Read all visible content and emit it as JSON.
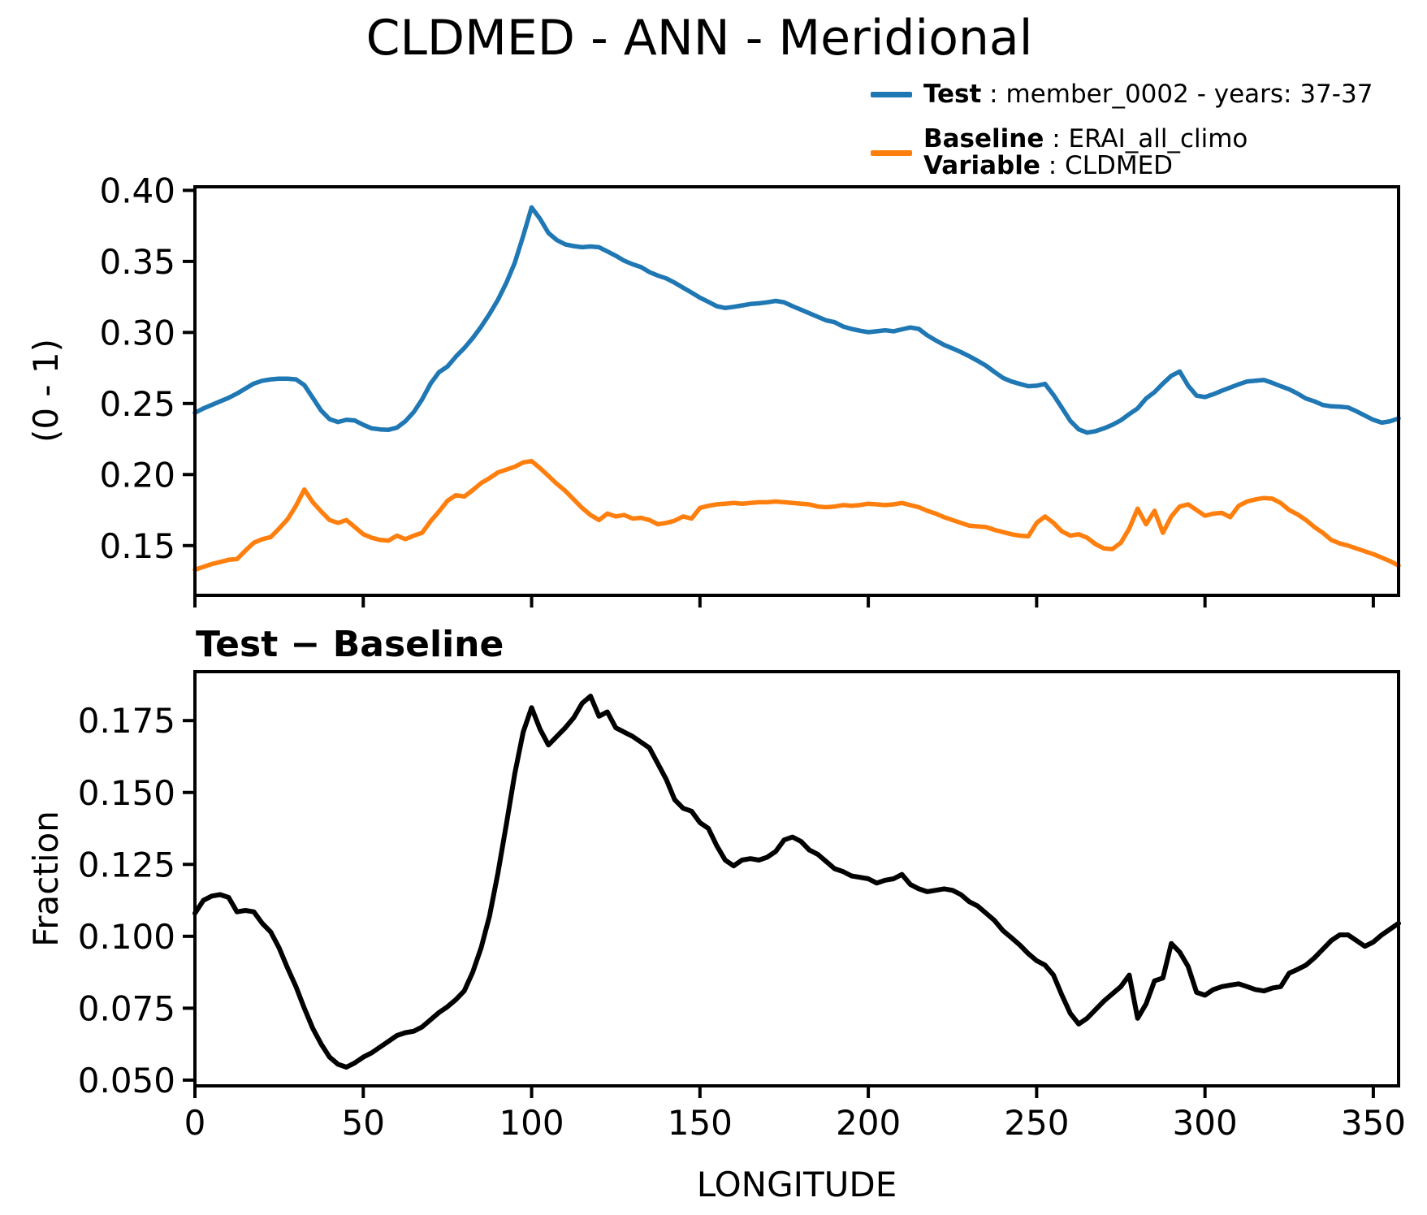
{
  "title": "CLDMED - ANN - Meridional",
  "legend": {
    "test_color": "#1f77b4",
    "test_bold": "Test",
    "test_rest": " : member_0002 - years: 37-37",
    "baseline_color": "#ff7f0e",
    "baseline_bold": "Baseline",
    "baseline_rest": " : ERAI_all_climo",
    "variable_bold": "Variable",
    "variable_rest": " : CLDMED"
  },
  "chart_data": [
    {
      "type": "line",
      "title": "",
      "ylabel": "(0 - 1)",
      "xlabel": "",
      "ylim": [
        0.115,
        0.4025
      ],
      "yticks": [
        0.15,
        0.2,
        0.25,
        0.3,
        0.35,
        0.4
      ],
      "ytick_labels": [
        "0.15",
        "0.20",
        "0.25",
        "0.30",
        "0.35",
        "0.40"
      ],
      "xlim": [
        0,
        357.5
      ],
      "xticks": [
        0,
        50,
        100,
        150,
        200,
        250,
        300,
        350
      ],
      "xtick_labels": null,
      "x_start": 0,
      "x_step": 2.5,
      "grid": false,
      "legend_position": "upper-right-outside",
      "series": [
        {
          "name": "Test : member_0002 - years: 37-37",
          "color": "#1f77b4",
          "values": [
            0.2435,
            0.2465,
            0.249,
            0.2515,
            0.254,
            0.257,
            0.2605,
            0.264,
            0.266,
            0.267,
            0.2675,
            0.2675,
            0.267,
            0.263,
            0.254,
            0.245,
            0.239,
            0.237,
            0.2385,
            0.238,
            0.235,
            0.2325,
            0.2318,
            0.2315,
            0.233,
            0.2375,
            0.244,
            0.253,
            0.264,
            0.272,
            0.276,
            0.283,
            0.289,
            0.296,
            0.304,
            0.313,
            0.323,
            0.335,
            0.349,
            0.368,
            0.388,
            0.38,
            0.37,
            0.365,
            0.362,
            0.3608,
            0.36,
            0.3605,
            0.36,
            0.357,
            0.354,
            0.3505,
            0.348,
            0.346,
            0.3425,
            0.34,
            0.338,
            0.335,
            0.3315,
            0.328,
            0.3245,
            0.3215,
            0.3185,
            0.3172,
            0.318,
            0.319,
            0.32,
            0.3205,
            0.3212,
            0.3222,
            0.3212,
            0.3185,
            0.316,
            0.3135,
            0.311,
            0.3085,
            0.3072,
            0.3042,
            0.3025,
            0.3012,
            0.3002,
            0.3008,
            0.3015,
            0.3008,
            0.3022,
            0.3035,
            0.3025,
            0.298,
            0.2945,
            0.2912,
            0.2888,
            0.2862,
            0.2832,
            0.28,
            0.2765,
            0.2722,
            0.268,
            0.2655,
            0.2638,
            0.2622,
            0.2625,
            0.2638,
            0.256,
            0.247,
            0.2378,
            0.2318,
            0.2295,
            0.2305,
            0.2325,
            0.235,
            0.2382,
            0.2425,
            0.2465,
            0.2535,
            0.258,
            0.264,
            0.2695,
            0.2725,
            0.2625,
            0.2555,
            0.2545,
            0.2565,
            0.259,
            0.2612,
            0.2635,
            0.2655,
            0.266,
            0.2665,
            0.2645,
            0.2622,
            0.26,
            0.257,
            0.2535,
            0.2515,
            0.249,
            0.248,
            0.2478,
            0.2472,
            0.2445,
            0.2415,
            0.2385,
            0.2365,
            0.2375,
            0.2395
          ]
        },
        {
          "name": "Baseline : ERAI_all_climo",
          "color": "#ff7f0e",
          "values": [
            0.133,
            0.135,
            0.137,
            0.1385,
            0.14,
            0.1405,
            0.1465,
            0.152,
            0.1545,
            0.156,
            0.162,
            0.1685,
            0.178,
            0.1895,
            0.1805,
            0.174,
            0.168,
            0.166,
            0.168,
            0.163,
            0.158,
            0.1555,
            0.154,
            0.1535,
            0.157,
            0.1545,
            0.157,
            0.159,
            0.1672,
            0.174,
            0.1815,
            0.1855,
            0.1845,
            0.189,
            0.194,
            0.1975,
            0.2015,
            0.2035,
            0.2055,
            0.2085,
            0.2095,
            0.2045,
            0.199,
            0.1935,
            0.1885,
            0.1825,
            0.1765,
            0.1715,
            0.168,
            0.1725,
            0.1705,
            0.1715,
            0.169,
            0.1695,
            0.168,
            0.165,
            0.166,
            0.1675,
            0.1705,
            0.169,
            0.1765,
            0.178,
            0.179,
            0.1795,
            0.18,
            0.1795,
            0.18,
            0.1805,
            0.1805,
            0.181,
            0.1805,
            0.18,
            0.1795,
            0.179,
            0.1775,
            0.177,
            0.1775,
            0.1785,
            0.178,
            0.1785,
            0.1795,
            0.179,
            0.1785,
            0.179,
            0.18,
            0.1785,
            0.177,
            0.1745,
            0.1725,
            0.17,
            0.168,
            0.166,
            0.164,
            0.1635,
            0.163,
            0.161,
            0.1595,
            0.158,
            0.157,
            0.1565,
            0.166,
            0.1705,
            0.166,
            0.16,
            0.157,
            0.158,
            0.1555,
            0.151,
            0.148,
            0.1475,
            0.152,
            0.162,
            0.176,
            0.165,
            0.1745,
            0.159,
            0.1705,
            0.1775,
            0.179,
            0.175,
            0.171,
            0.1725,
            0.173,
            0.17,
            0.178,
            0.181,
            0.1825,
            0.1835,
            0.183,
            0.18,
            0.175,
            0.172,
            0.168,
            0.163,
            0.159,
            0.154,
            0.1515,
            0.15,
            0.148,
            0.146,
            0.144,
            0.1415,
            0.139,
            0.136
          ]
        }
      ]
    },
    {
      "type": "line",
      "title": "Test − Baseline",
      "ylabel": "Fraction",
      "xlabel": "LONGITUDE",
      "ylim": [
        0.048,
        0.192
      ],
      "yticks": [
        0.05,
        0.075,
        0.1,
        0.125,
        0.15,
        0.175
      ],
      "ytick_labels": [
        "0.050",
        "0.075",
        "0.100",
        "0.125",
        "0.150",
        "0.175"
      ],
      "xlim": [
        0,
        357.5
      ],
      "xticks": [
        0,
        50,
        100,
        150,
        200,
        250,
        300,
        350
      ],
      "xtick_labels": [
        "0",
        "50",
        "100",
        "150",
        "200",
        "250",
        "300",
        "350"
      ],
      "x_start": 0,
      "x_step": 2.5,
      "grid": false,
      "series": [
        {
          "name": "Test minus Baseline",
          "color": "#000000",
          "values": [
            0.108,
            0.1125,
            0.114,
            0.1145,
            0.1135,
            0.1085,
            0.109,
            0.1085,
            0.1045,
            0.1015,
            0.096,
            0.089,
            0.0825,
            0.075,
            0.068,
            0.0625,
            0.058,
            0.0555,
            0.0545,
            0.056,
            0.058,
            0.0595,
            0.0615,
            0.0635,
            0.0655,
            0.0665,
            0.067,
            0.0685,
            0.071,
            0.0735,
            0.0755,
            0.078,
            0.081,
            0.0875,
            0.096,
            0.107,
            0.122,
            0.139,
            0.1565,
            0.171,
            0.1795,
            0.172,
            0.1665,
            0.1695,
            0.1725,
            0.176,
            0.181,
            0.1835,
            0.1765,
            0.178,
            0.1725,
            0.171,
            0.1695,
            0.1675,
            0.1655,
            0.16,
            0.1545,
            0.1475,
            0.1445,
            0.1435,
            0.1395,
            0.1375,
            0.1315,
            0.1265,
            0.1245,
            0.1265,
            0.127,
            0.1265,
            0.1275,
            0.1295,
            0.1335,
            0.1345,
            0.133,
            0.13,
            0.1285,
            0.126,
            0.1235,
            0.1225,
            0.121,
            0.1205,
            0.12,
            0.1185,
            0.1195,
            0.12,
            0.1215,
            0.118,
            0.1165,
            0.1155,
            0.116,
            0.1165,
            0.116,
            0.1145,
            0.112,
            0.1105,
            0.108,
            0.1055,
            0.102,
            0.0995,
            0.097,
            0.094,
            0.0915,
            0.09,
            0.0865,
            0.0795,
            0.0732,
            0.0695,
            0.0715,
            0.0745,
            0.0775,
            0.08,
            0.0825,
            0.0865,
            0.0715,
            0.0765,
            0.0845,
            0.0855,
            0.0975,
            0.0945,
            0.0895,
            0.0805,
            0.0795,
            0.0815,
            0.0825,
            0.083,
            0.0835,
            0.0825,
            0.0815,
            0.081,
            0.082,
            0.0825,
            0.0872,
            0.0885,
            0.09,
            0.0925,
            0.0955,
            0.0985,
            0.1005,
            0.1005,
            0.0985,
            0.0965,
            0.098,
            0.1005,
            0.1025,
            0.1045
          ]
        }
      ]
    }
  ]
}
